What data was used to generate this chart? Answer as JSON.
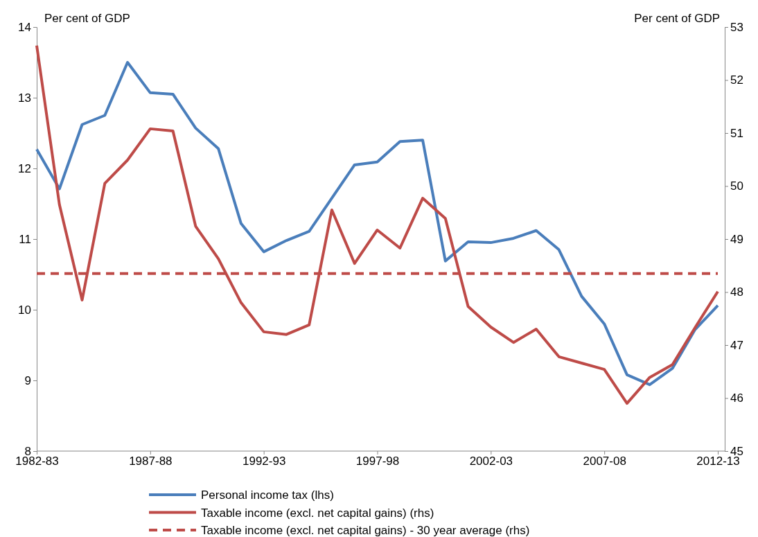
{
  "chart_data": {
    "type": "line",
    "ylabel": "Per cent of GDP",
    "y2label": "Per cent of GDP",
    "categories": [
      "1982-83",
      null,
      null,
      null,
      null,
      "1987-88",
      null,
      null,
      null,
      null,
      "1992-93",
      null,
      null,
      null,
      null,
      "1997-98",
      null,
      null,
      null,
      null,
      "2002-03",
      null,
      null,
      null,
      null,
      "2007-08",
      null,
      null,
      null,
      null,
      "2012-13"
    ],
    "series": [
      {
        "name": "Personal income tax (lhs)",
        "color": "#4a7ebb",
        "values": [
          12.27,
          11.71,
          12.62,
          12.75,
          13.5,
          13.07,
          13.05,
          12.57,
          12.28,
          11.22,
          10.82,
          10.98,
          11.11,
          11.58,
          12.05,
          12.09,
          12.38,
          12.4,
          10.69,
          10.96,
          10.95,
          11.01,
          11.12,
          10.85,
          10.19,
          9.8,
          9.08,
          8.94,
          9.17,
          9.72,
          10.06
        ]
      },
      {
        "name": "Taxable income (excl. net capital gains) (rhs)",
        "color": "#be4b48",
        "axis": "y2",
        "values": [
          52.65,
          49.65,
          47.85,
          50.05,
          50.49,
          51.08,
          51.04,
          49.24,
          48.63,
          47.8,
          47.25,
          47.2,
          47.38,
          49.55,
          48.54,
          49.17,
          48.83,
          49.77,
          49.39,
          47.73,
          47.34,
          47.05,
          47.3,
          46.78,
          46.66,
          46.54,
          45.9,
          46.39,
          46.63,
          47.33,
          48.01
        ]
      },
      {
        "name": "Taxable income (excl. net capital gains) - 30 year average (rhs)",
        "color": "#be4b48",
        "axis": "y2",
        "line_style": "dashed",
        "values": [
          48.35,
          48.35,
          48.35,
          48.35,
          48.35,
          48.35,
          48.35,
          48.35,
          48.35,
          48.35,
          48.35,
          48.35,
          48.35,
          48.35,
          48.35,
          48.35,
          48.35,
          48.35,
          48.35,
          48.35,
          48.35,
          48.35,
          48.35,
          48.35,
          48.35,
          48.35,
          48.35,
          48.35,
          48.35,
          48.35,
          48.35
        ]
      }
    ],
    "ylim": [
      8,
      14
    ],
    "yticks": [
      8,
      9,
      10,
      11,
      12,
      13,
      14
    ],
    "y2lim": [
      45,
      53
    ],
    "y2ticks": [
      45,
      46,
      47,
      48,
      49,
      50,
      51,
      52,
      53
    ],
    "grid": false,
    "legend": "bottom",
    "marker": "none",
    "line_style": "solid"
  }
}
